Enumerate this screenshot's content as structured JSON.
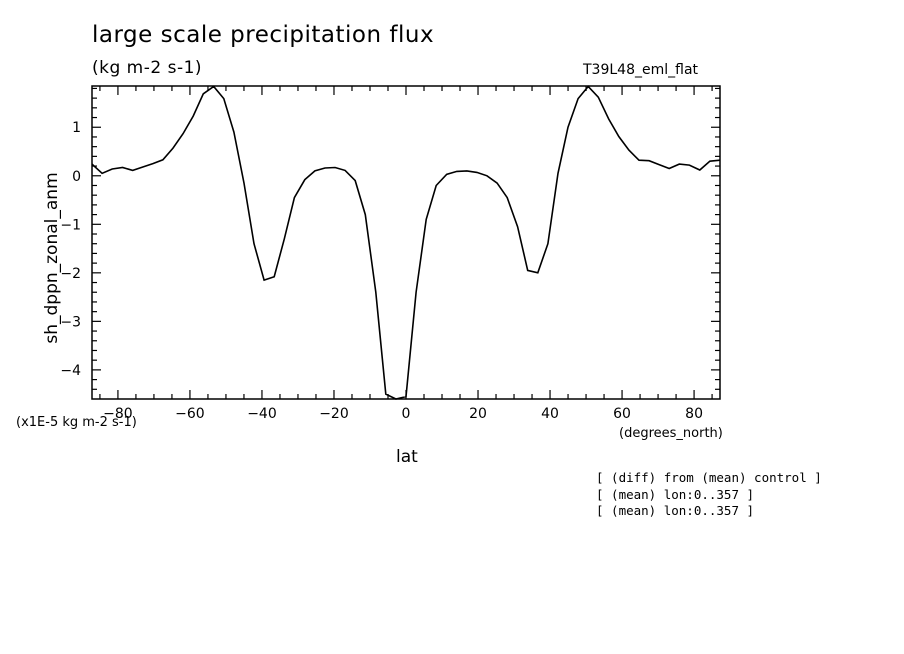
{
  "chart_data": {
    "type": "line",
    "title": "large scale precipitation flux",
    "units_label": "(kg m-2 s-1)",
    "run_label": "T39L48_eml_flat",
    "ylabel": "sh_dppn_zonal_anm",
    "xlabel": "lat",
    "x_units": "(degrees_north)",
    "y_scale_note": "(x1E-5 kg m-2 s-1)",
    "xlim": [
      -87.2,
      87.2
    ],
    "ylim": [
      -4.6,
      1.85
    ],
    "x_ticks": [
      -80,
      -60,
      -40,
      -20,
      0,
      20,
      40,
      60,
      80
    ],
    "x_tick_labels": [
      "-80",
      "-60",
      "-40",
      "-20",
      "0",
      "20",
      "40",
      "60",
      "80"
    ],
    "y_ticks": [
      -4,
      -3,
      -2,
      -1,
      0,
      1
    ],
    "y_tick_labels": [
      "-4",
      "-3",
      "-2",
      "-1",
      "0",
      "1"
    ],
    "grid": false,
    "series": [
      {
        "x": [
          -87.2,
          -84.4,
          -81.6,
          -78.7,
          -75.9,
          -73.1,
          -70.3,
          -67.5,
          -64.7,
          -61.9,
          -59.1,
          -56.3,
          -53.4,
          -50.6,
          -47.8,
          -45.0,
          -42.2,
          -39.4,
          -36.6,
          -33.8,
          -31.0,
          -28.1,
          -25.3,
          -22.5,
          -19.7,
          -16.9,
          -14.1,
          -11.3,
          -8.4,
          -5.6,
          -2.8,
          0.0,
          2.8,
          5.6,
          8.4,
          11.3,
          14.1,
          16.9,
          19.7,
          22.5,
          25.3,
          28.1,
          31.0,
          33.8,
          36.6,
          39.4,
          42.2,
          45.0,
          47.8,
          50.6,
          53.4,
          56.3,
          59.1,
          61.9,
          64.7,
          67.5,
          70.3,
          73.1,
          75.9,
          78.7,
          81.6,
          84.4,
          87.2
        ],
        "values": [
          0.24,
          0.05,
          0.14,
          0.17,
          0.11,
          0.18,
          0.25,
          0.33,
          0.57,
          0.87,
          1.23,
          1.69,
          1.84,
          1.59,
          0.9,
          -0.15,
          -1.4,
          -2.15,
          -2.08,
          -1.3,
          -0.45,
          -0.08,
          0.1,
          0.16,
          0.17,
          0.11,
          -0.1,
          -0.8,
          -2.4,
          -4.5,
          -4.6,
          -4.55,
          -2.4,
          -0.9,
          -0.2,
          0.03,
          0.09,
          0.1,
          0.07,
          0.0,
          -0.15,
          -0.45,
          -1.05,
          -1.95,
          -2.0,
          -1.4,
          0.05,
          1.0,
          1.59,
          1.84,
          1.62,
          1.17,
          0.81,
          0.53,
          0.32,
          0.31,
          0.23,
          0.15,
          0.24,
          0.22,
          0.12,
          0.3,
          0.32
        ]
      }
    ]
  },
  "annotations": [
    "[ (diff) from (mean) control ]",
    "[ (mean) lon:0..357 ]",
    "[ (mean) lon:0..357 ]"
  ]
}
